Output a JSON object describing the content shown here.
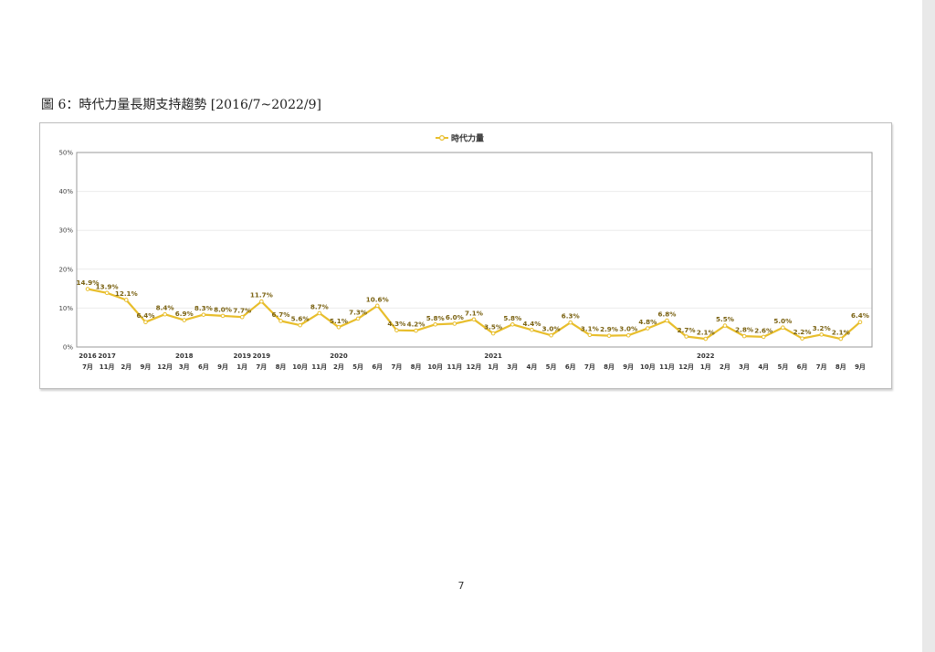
{
  "caption": "圖 6：時代力量長期支持趨勢 [2016/7~2022/9]",
  "page_number": "7",
  "colors": {
    "series": "#e8be2c",
    "label": "#7a6212",
    "grid": "#ececec"
  },
  "chart_data": {
    "type": "line",
    "title": "",
    "xlabel": "",
    "ylabel": "",
    "ylim": [
      0,
      50
    ],
    "yticks": [
      "0%",
      "10%",
      "20%",
      "30%",
      "40%",
      "50%"
    ],
    "grid": true,
    "legend_position": "top-center",
    "x": [
      "7月",
      "11月",
      "2月",
      "9月",
      "12月",
      "3月",
      "6月",
      "9月",
      "1月",
      "7月",
      "8月",
      "10月",
      "11月",
      "2月",
      "5月",
      "6月",
      "7月",
      "8月",
      "10月",
      "11月",
      "12月",
      "1月",
      "3月",
      "4月",
      "5月",
      "6月",
      "7月",
      "8月",
      "9月",
      "10月",
      "11月",
      "12月",
      "1月",
      "2月",
      "3月",
      "4月",
      "5月",
      "6月",
      "7月",
      "8月",
      "9月"
    ],
    "years": [
      "2016",
      "2017",
      "",
      "",
      "",
      "2018",
      "",
      "",
      "2019",
      "2019",
      "",
      "",
      "",
      "2020",
      "",
      "",
      "",
      "",
      "",
      "",
      "",
      "2021",
      "",
      "",
      "",
      "",
      "",
      "",
      "",
      "",
      "",
      "",
      "2022",
      "",
      "",
      "",
      "",
      "",
      "",
      "",
      ""
    ],
    "series": [
      {
        "name": "時代力量",
        "values": [
          14.9,
          13.9,
          12.1,
          6.4,
          8.4,
          6.9,
          8.3,
          8.0,
          7.7,
          11.7,
          6.7,
          5.6,
          8.7,
          5.1,
          7.3,
          10.6,
          4.3,
          4.2,
          5.8,
          6.0,
          7.1,
          3.5,
          5.8,
          4.4,
          3.0,
          6.3,
          3.1,
          2.9,
          3.0,
          4.8,
          6.8,
          2.7,
          2.1,
          5.5,
          2.8,
          2.6,
          5.0,
          2.2,
          3.2,
          2.1,
          6.4
        ],
        "labels": [
          "14.9%",
          "13.9%",
          "12.1%",
          "6.4%",
          "8.4%",
          "6.9%",
          "8.3%",
          "8.0%",
          "7.7%",
          "11.7%",
          "6.7%",
          "5.6%",
          "8.7%",
          "5.1%",
          "7.3%",
          "10.6%",
          "4.3%",
          "4.2%",
          "5.8%",
          "6.0%",
          "7.1%",
          "3.5%",
          "5.8%",
          "4.4%",
          "3.0%",
          "6.3%",
          "3.1%",
          "2.9%",
          "3.0%",
          "4.8%",
          "6.8%",
          "2.7%",
          "2.1%",
          "5.5%",
          "2.8%",
          "2.6%",
          "5.0%",
          "2.2%",
          "3.2%",
          "2.1%",
          "6.4%"
        ]
      }
    ]
  }
}
